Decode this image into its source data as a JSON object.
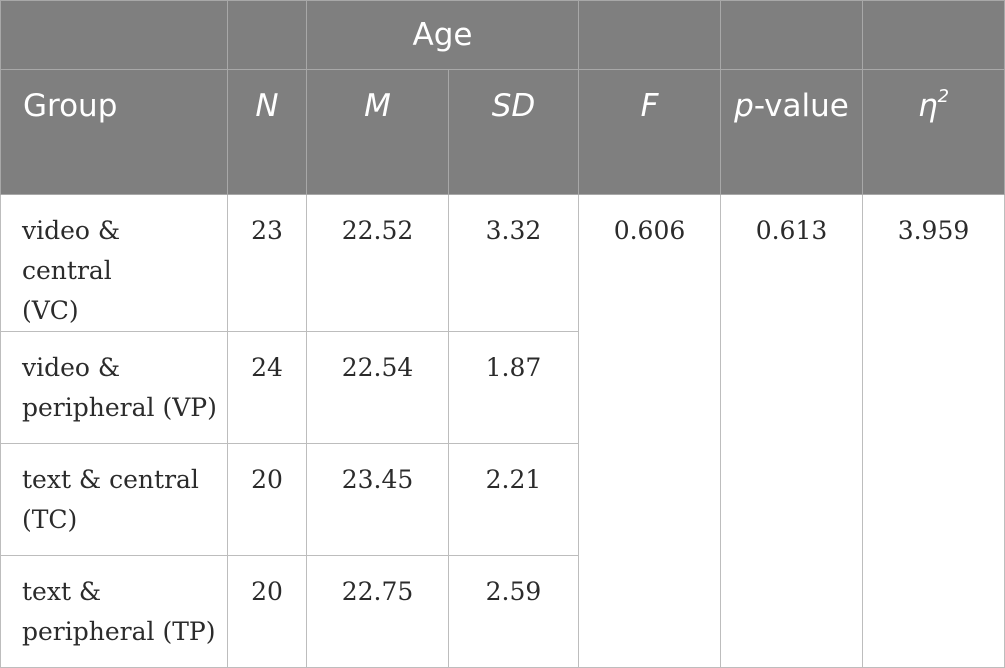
{
  "table": {
    "header_top": {
      "age": "Age"
    },
    "columns": {
      "group": "Group",
      "n": "N",
      "m": "M",
      "sd": "SD",
      "f": "F",
      "p_italic": "p",
      "p_rest": "-value",
      "eta": "η",
      "eta_sup": "2"
    },
    "rows": [
      {
        "group_line1": "video & central",
        "group_line2": "(VC)",
        "n": "23",
        "m": "22.52",
        "sd": "3.32"
      },
      {
        "group_line1": "video &",
        "group_line2": "peripheral (VP)",
        "n": "24",
        "m": "22.54",
        "sd": "1.87"
      },
      {
        "group_line1": "text & central",
        "group_line2": "(TC)",
        "n": "20",
        "m": "23.45",
        "sd": "2.21"
      },
      {
        "group_line1": "text &",
        "group_line2": "peripheral (TP)",
        "n": "20",
        "m": "22.75",
        "sd": "2.59"
      }
    ],
    "stats": {
      "f": "0.606",
      "p": "0.613",
      "eta": "3.959"
    }
  }
}
